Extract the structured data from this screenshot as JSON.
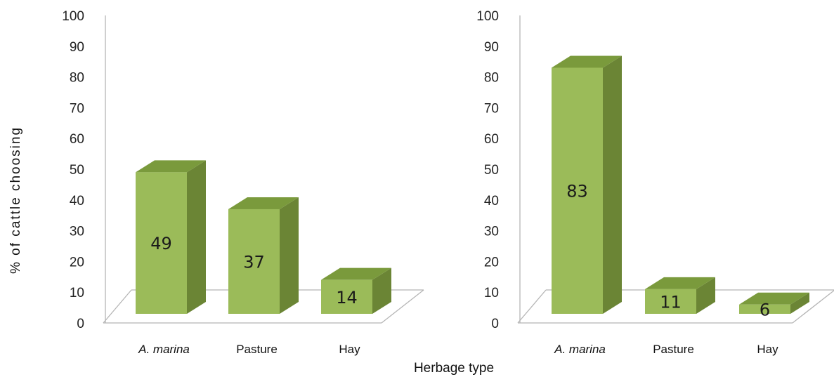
{
  "chart_data": [
    {
      "type": "bar",
      "categories": [
        "A. marina",
        "Pasture",
        "Hay"
      ],
      "values": [
        49,
        37,
        14
      ],
      "ylim": [
        0,
        100
      ],
      "yticks": [
        "0",
        "10",
        "20",
        "30",
        "40",
        "50",
        "60",
        "70",
        "80",
        "90",
        "100"
      ],
      "ylabel": "% of cattle choosing",
      "xlabel": "Herbage type",
      "grid": false
    },
    {
      "type": "bar",
      "categories": [
        "A. marina",
        "Pasture",
        "Hay"
      ],
      "values": [
        83,
        11,
        6
      ],
      "ylim": [
        0,
        100
      ],
      "yticks": [
        "0",
        "10",
        "20",
        "30",
        "40",
        "50",
        "60",
        "70",
        "80",
        "90",
        "100"
      ],
      "ylabel": "",
      "xlabel": "Herbage type",
      "grid": false
    }
  ],
  "colors": {
    "bar_front": "#9BBB59",
    "bar_side": "#6B8535",
    "bar_top": "#7A9A3C",
    "floor_line": "#b5b5b5"
  }
}
